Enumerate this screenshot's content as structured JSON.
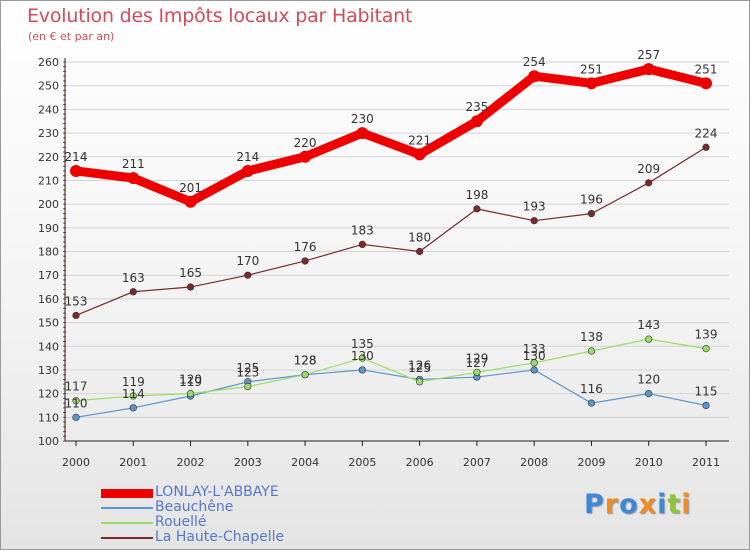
{
  "header": {
    "title": "Evolution des Impôts locaux par Habitant",
    "subtitle": "(en € et par an)"
  },
  "logo": {
    "text": "Proxiti",
    "colors": [
      "#3f88d8",
      "#f08a24",
      "#3f88d8",
      "#f08a24",
      "#3f88d8",
      "#8fc23c",
      "#f08a24"
    ]
  },
  "chart_data": {
    "type": "line",
    "x": [
      "2000",
      "2001",
      "2002",
      "2003",
      "2004",
      "2005",
      "2006",
      "2007",
      "2008",
      "2009",
      "2010",
      "2011"
    ],
    "ylim": [
      100,
      260
    ],
    "yticks": [
      100,
      110,
      120,
      130,
      140,
      150,
      160,
      170,
      180,
      190,
      200,
      210,
      220,
      230,
      240,
      250,
      260
    ],
    "grid": "horizontal",
    "legend_position": "bottom-left",
    "series": [
      {
        "name": "LONLAY-L'ABBAYE",
        "color": "#ee0000",
        "values": [
          214,
          211,
          201,
          214,
          220,
          230,
          221,
          235,
          254,
          251,
          257,
          251
        ]
      },
      {
        "name": "Beauchêne",
        "color": "#5a95cc",
        "values": [
          110,
          114,
          119,
          125,
          128,
          130,
          126,
          127,
          130,
          116,
          120,
          115
        ]
      },
      {
        "name": "Rouellé",
        "color": "#99dd66",
        "values": [
          117,
          119,
          120,
          123,
          128,
          135,
          125,
          129,
          133,
          138,
          143,
          139
        ]
      },
      {
        "name": "La Haute-Chapelle",
        "color": "#7a2a2a",
        "values": [
          153,
          163,
          165,
          170,
          176,
          183,
          180,
          198,
          193,
          196,
          209,
          224
        ]
      }
    ]
  }
}
